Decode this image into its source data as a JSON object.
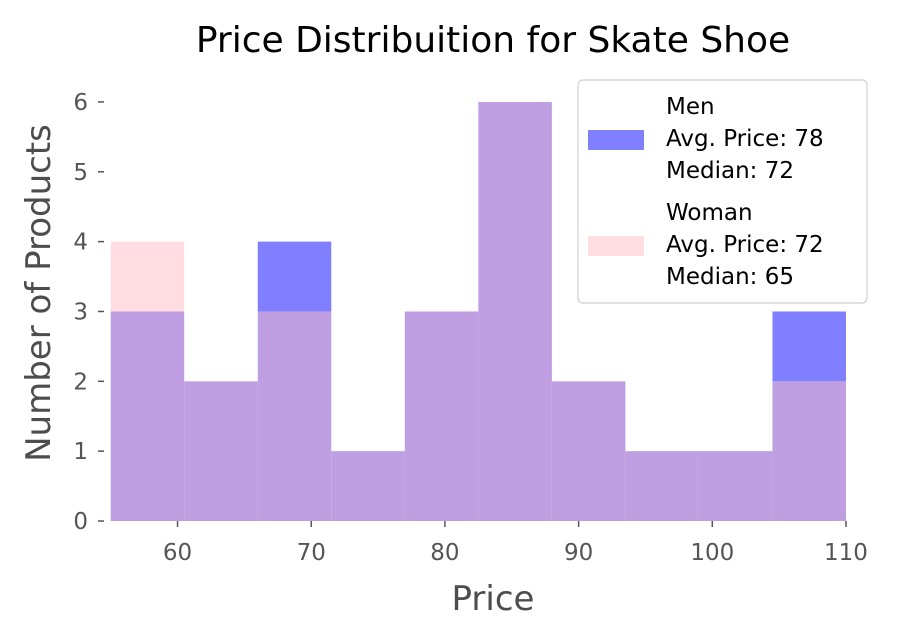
{
  "chart_data": {
    "type": "bar",
    "title": "Price Distribuition for Skate Shoe",
    "xlabel": "Price",
    "ylabel": "Number of Products",
    "xlim": [
      54.5,
      110.3
    ],
    "ylim": [
      0,
      6.4
    ],
    "x_ticks": [
      60,
      70,
      80,
      90,
      100,
      110
    ],
    "y_ticks": [
      0,
      1,
      2,
      3,
      4,
      5,
      6
    ],
    "bin_edges": [
      55,
      60.5,
      66,
      71.5,
      77,
      82.5,
      88,
      93.5,
      99,
      104.5,
      110
    ],
    "grid": false,
    "legend_position": "top-right",
    "series": [
      {
        "name": "Men",
        "color": "#8080ff",
        "values": [
          3,
          2,
          4,
          1,
          3,
          6,
          2,
          1,
          1,
          3
        ],
        "legend_lines": [
          "Men",
          "Avg. Price: 78",
          "Median: 72"
        ]
      },
      {
        "name": "Woman",
        "color": "#ffdde2",
        "values": [
          4,
          2,
          3,
          1,
          3,
          6,
          2,
          1,
          1,
          2
        ],
        "legend_lines": [
          "Woman",
          "Avg. Price: 72",
          "Median: 65"
        ]
      }
    ],
    "overlap_color": "#bf9fe1"
  }
}
